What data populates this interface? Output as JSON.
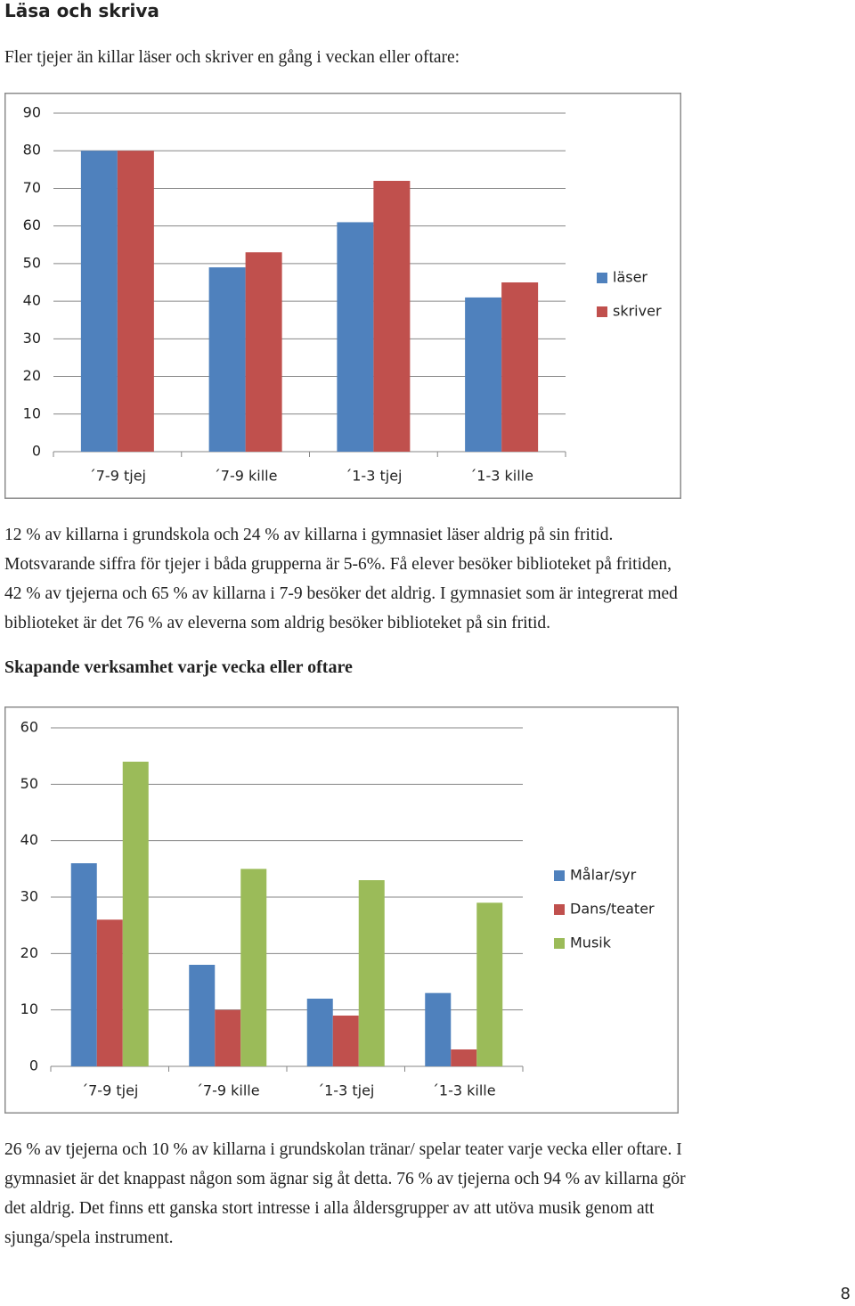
{
  "heading1": "Läsa och skriva",
  "intro": "Fler tjejer än killar läser och skriver en gång i veckan eller oftare:",
  "chart_data": [
    {
      "type": "bar",
      "categories": [
        "´7-9 tjej",
        "´7-9 kille",
        "´1-3 tjej",
        "´1-3 kille"
      ],
      "series": [
        {
          "name": "läser",
          "color": "#4f81bd",
          "values": [
            80,
            49,
            61,
            41
          ]
        },
        {
          "name": "skriver",
          "color": "#c0504d",
          "values": [
            80,
            53,
            72,
            45
          ]
        }
      ],
      "ylim": [
        0,
        90
      ],
      "yticks": [
        0,
        10,
        20,
        30,
        40,
        50,
        60,
        70,
        80,
        90
      ],
      "grid": true,
      "legend": "right"
    },
    {
      "type": "bar",
      "categories": [
        "´7-9 tjej",
        "´7-9 kille",
        "´1-3 tjej",
        "´1-3 kille"
      ],
      "series": [
        {
          "name": "Målar/syr",
          "color": "#4f81bd",
          "values": [
            36,
            18,
            12,
            13
          ]
        },
        {
          "name": "Dans/teater",
          "color": "#c0504d",
          "values": [
            26,
            10,
            9,
            3
          ]
        },
        {
          "name": "Musik",
          "color": "#9bbb59",
          "values": [
            54,
            35,
            33,
            29
          ]
        }
      ],
      "ylim": [
        0,
        60
      ],
      "yticks": [
        0,
        10,
        20,
        30,
        40,
        50,
        60
      ],
      "grid": true,
      "legend": "right"
    }
  ],
  "paragraph1": [
    "12 % av killarna i grundskola och 24 % av killarna i gymnasiet läser aldrig på sin fritid.",
    "Motsvarande siffra för tjejer i båda grupperna är 5-6%. Få elever besöker biblioteket på fritiden,",
    "42 % av tjejerna och 65 % av killarna i 7-9 besöker det aldrig.  I gymnasiet som är integrerat med",
    "biblioteket är det 76 % av eleverna som aldrig besöker biblioteket på sin fritid."
  ],
  "heading2": "Skapande verksamhet varje vecka eller oftare",
  "paragraph2": [
    "26 % av tjejerna och 10 % av killarna i grundskolan tränar/ spelar teater varje vecka eller oftare. I",
    "gymnasiet är det knappast någon som ägnar sig åt detta. 76 % av tjejerna och 94 % av killarna gör",
    "det aldrig. Det finns ett ganska stort intresse i alla åldersgrupper av att utöva musik genom att",
    "sjunga/spela instrument."
  ],
  "page_number": "8"
}
